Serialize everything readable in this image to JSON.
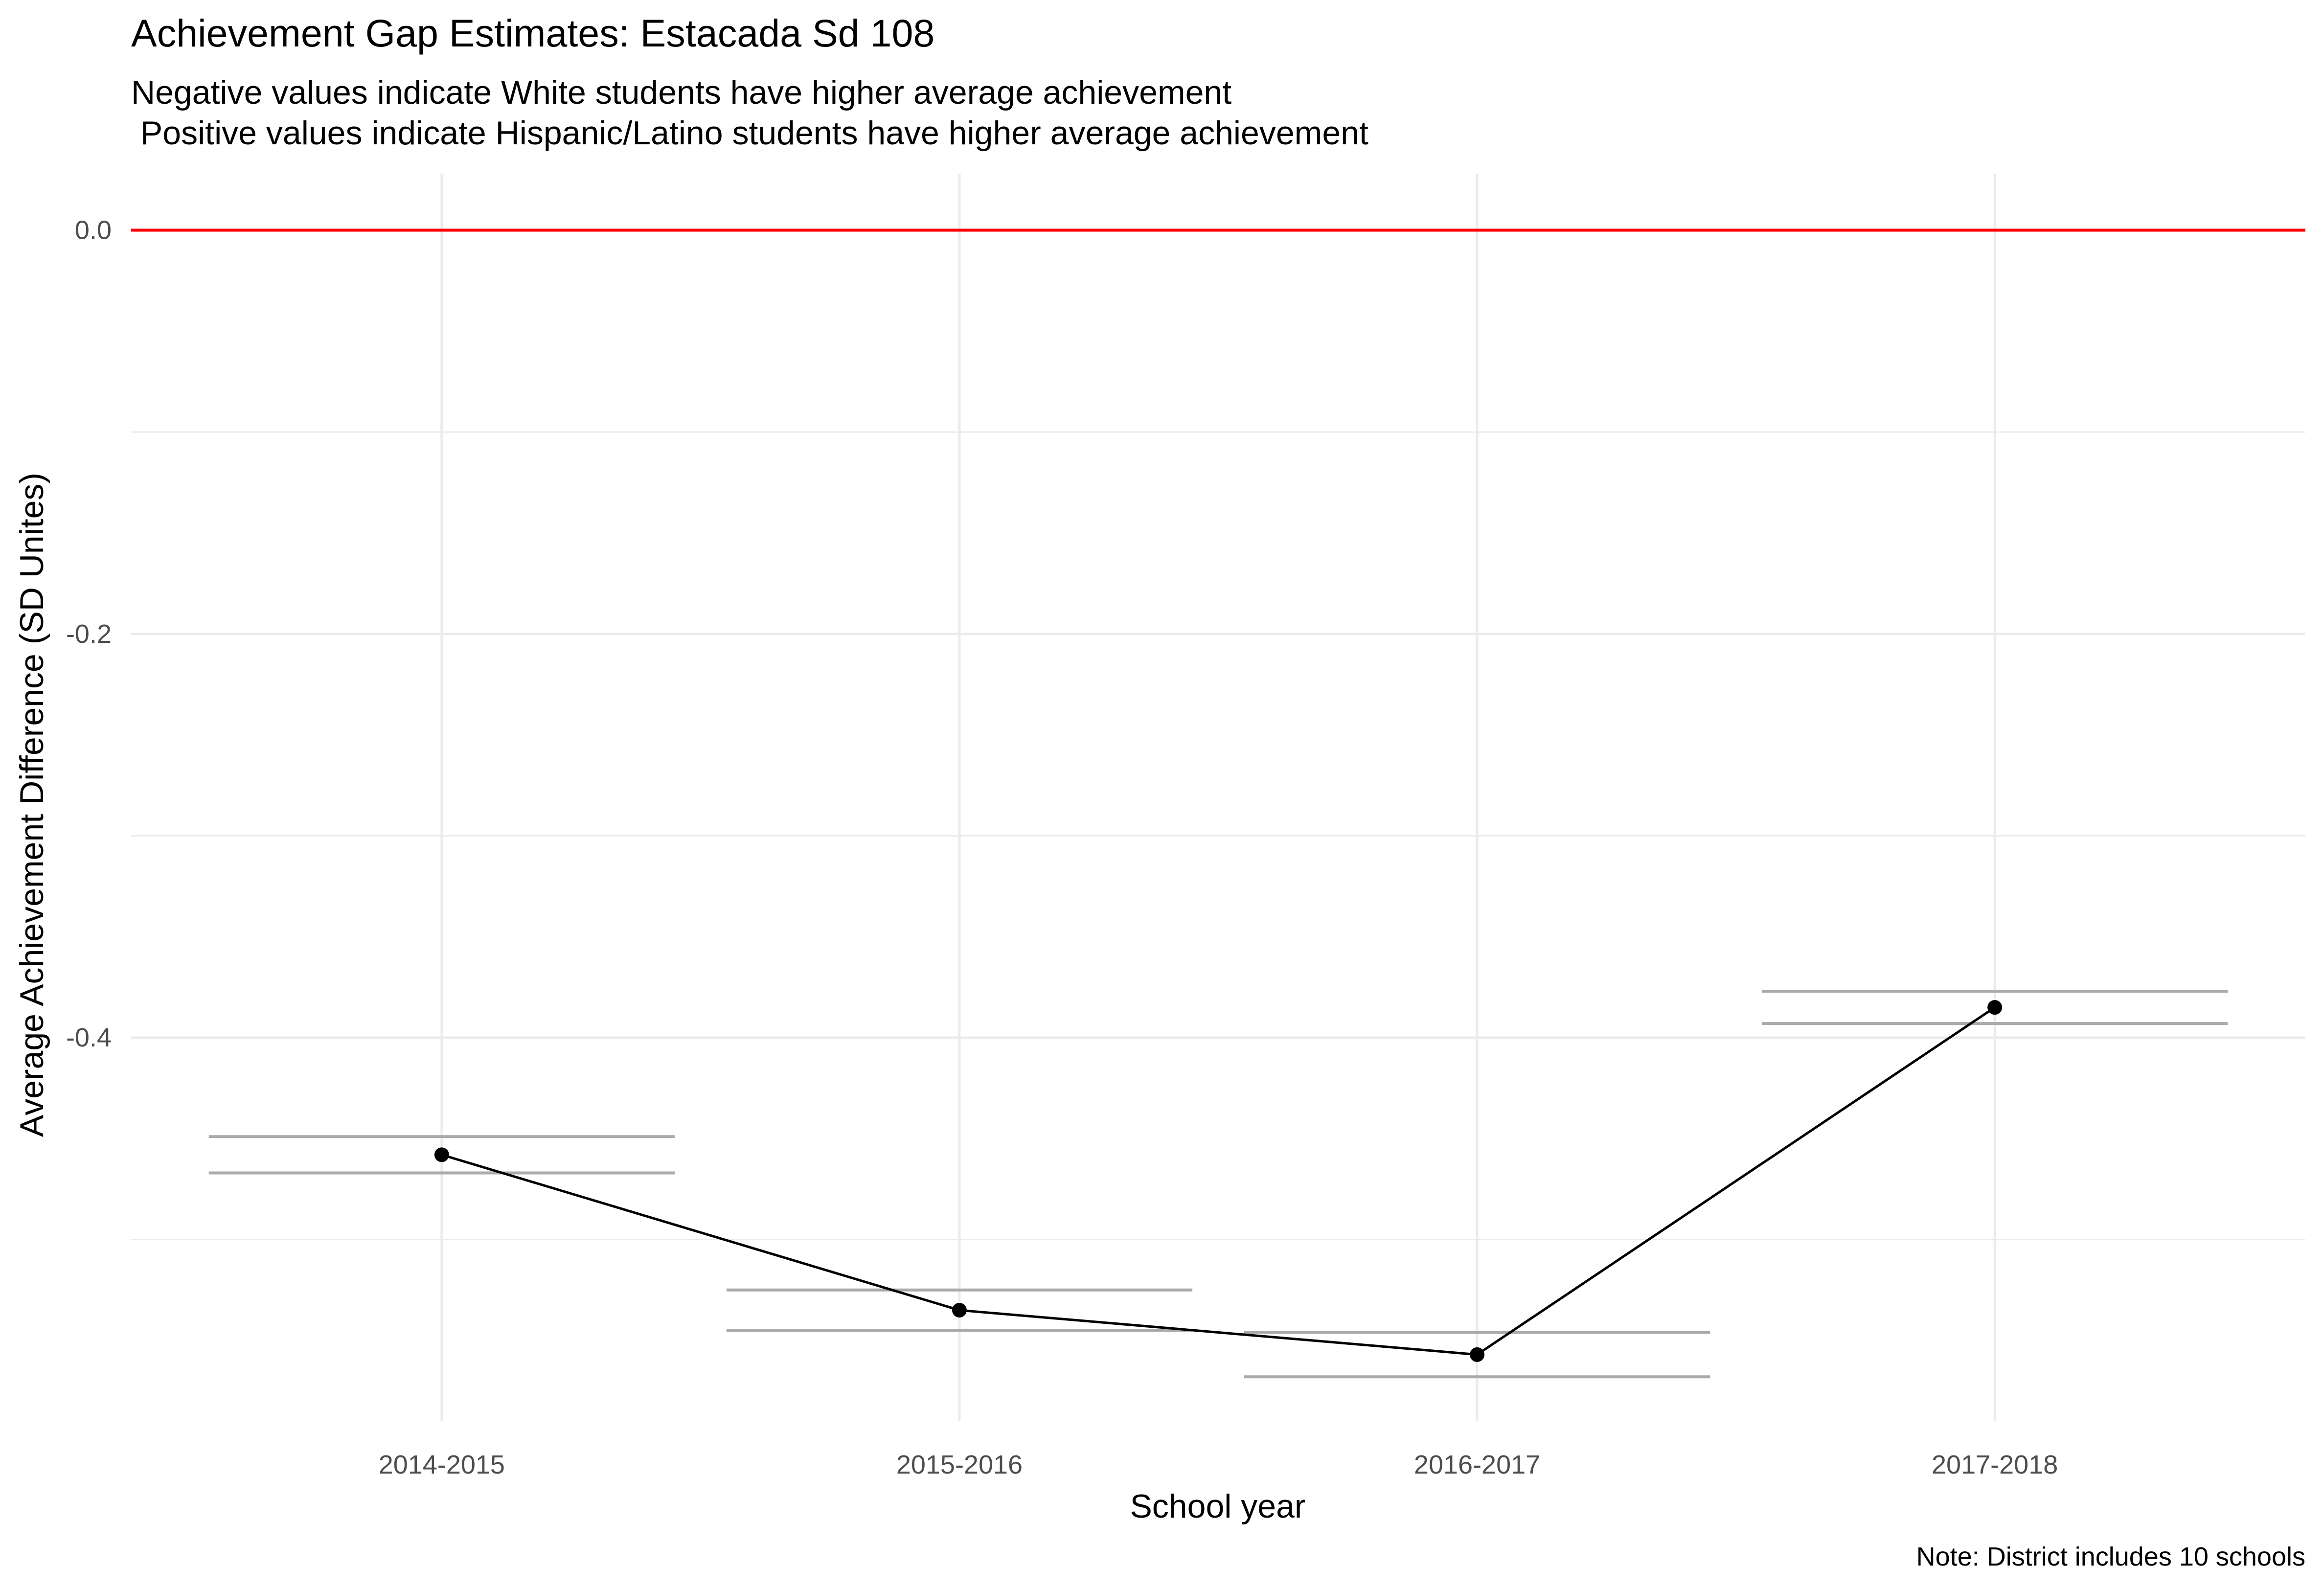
{
  "chart_data": {
    "type": "line",
    "title": "Achievement Gap Estimates: Estacada Sd 108",
    "subtitle_lines": [
      "Negative values indicate White students have higher average achievement",
      " Positive values indicate Hispanic/Latino students have higher average achievement"
    ],
    "xlabel": "School year",
    "ylabel": "Average Achievement Difference (SD Unites)",
    "caption": "Note: District includes 10 schools",
    "categories": [
      "2014-2015",
      "2015-2016",
      "2016-2017",
      "2017-2018"
    ],
    "series": [
      {
        "values": [
          -0.458,
          -0.535,
          -0.557,
          -0.385
        ],
        "ci_upper": [
          -0.449,
          -0.525,
          -0.546,
          -0.377
        ],
        "ci_lower": [
          -0.467,
          -0.545,
          -0.568,
          -0.393
        ]
      }
    ],
    "reference_line": {
      "y": 0.0,
      "color": "#ff0000"
    },
    "ylim": [
      -0.59,
      0.028
    ],
    "yticks": [
      0.0,
      -0.2,
      -0.4
    ],
    "yticks_labels": [
      "0.0",
      "-0.2",
      "-0.4"
    ],
    "minor_yticks": [
      -0.1,
      -0.3,
      -0.5
    ],
    "grid": true,
    "colors": {
      "line": "#000000",
      "points": "#000000",
      "error_bars": "#aaaaaa",
      "grid": "#ebebeb",
      "tick_labels": "#4d4d4d"
    }
  }
}
